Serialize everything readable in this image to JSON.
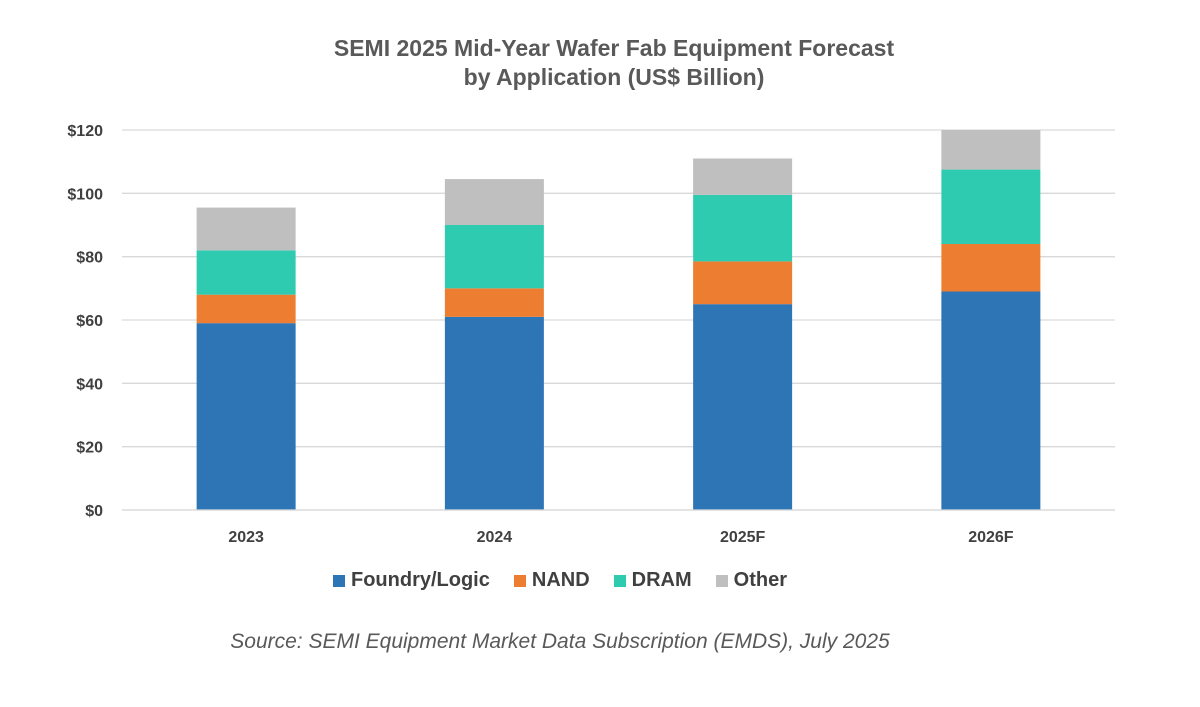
{
  "chart_data": {
    "type": "bar",
    "stacked": true,
    "title_lines": [
      "SEMI 2025 Mid-Year Wafer Fab Equipment Forecast",
      "by Application (US$ Billion)"
    ],
    "categories": [
      "2023",
      "2024",
      "2025F",
      "2026F"
    ],
    "series": [
      {
        "name": "Foundry/Logic",
        "color": "#2e75b6",
        "values": [
          59,
          61,
          65,
          69
        ]
      },
      {
        "name": "NAND",
        "color": "#ed7d31",
        "values": [
          9,
          9,
          13.5,
          15
        ]
      },
      {
        "name": "DRAM",
        "color": "#2ecbb0",
        "values": [
          14,
          20,
          21,
          23.5
        ]
      },
      {
        "name": "Other",
        "color": "#bfbfbf",
        "values": [
          13.5,
          14.5,
          11.5,
          12.5
        ]
      }
    ],
    "ylim": [
      0,
      120
    ],
    "yticks": [
      0,
      20,
      40,
      60,
      80,
      100,
      120
    ],
    "ytick_labels": [
      "$0",
      "$20",
      "$40",
      "$60",
      "$80",
      "$100",
      "$120"
    ],
    "grid": true,
    "legend_position": "bottom",
    "source": "Source: SEMI Equipment Market Data Subscription (EMDS), July 2025"
  }
}
